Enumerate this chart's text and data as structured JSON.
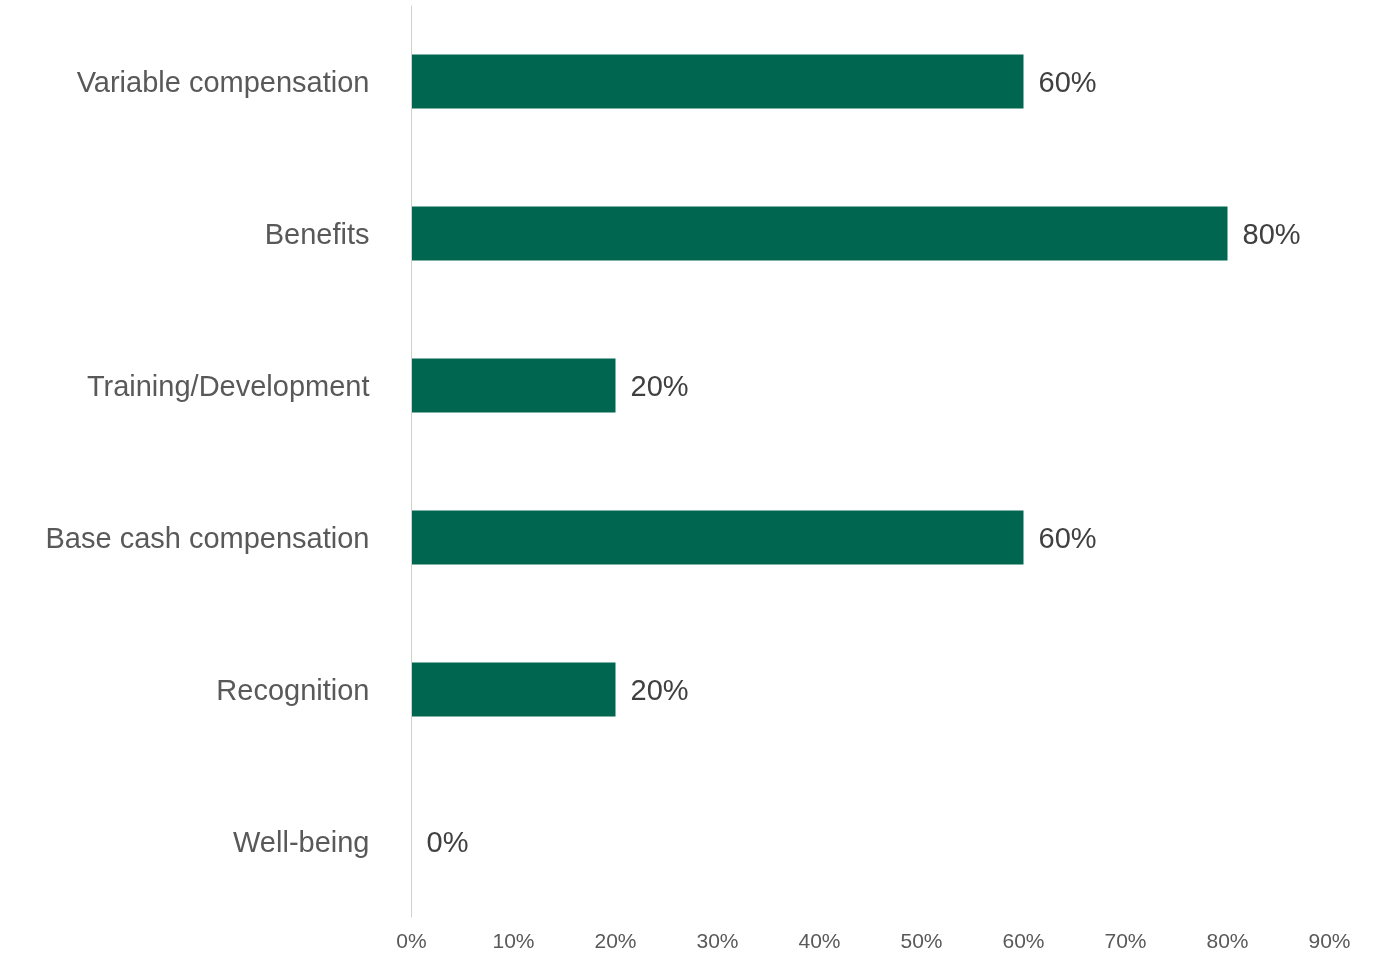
{
  "chart_data": {
    "type": "bar",
    "orientation": "horizontal",
    "categories": [
      "Variable compensation",
      "Benefits",
      "Training/Development",
      "Base cash compensation",
      "Recognition",
      "Well-being"
    ],
    "values": [
      60,
      80,
      20,
      60,
      20,
      0
    ],
    "value_labels": [
      "60%",
      "80%",
      "20%",
      "60%",
      "20%",
      "0%"
    ],
    "color": "#006650",
    "xlim": [
      0,
      90
    ],
    "xticks": [
      {
        "value": 0,
        "label": "0%"
      },
      {
        "value": 10,
        "label": "10%"
      },
      {
        "value": 20,
        "label": "20%"
      },
      {
        "value": 30,
        "label": "30%"
      },
      {
        "value": 40,
        "label": "40%"
      },
      {
        "value": 50,
        "label": "50%"
      },
      {
        "value": 60,
        "label": "60%"
      },
      {
        "value": 70,
        "label": "70%"
      },
      {
        "value": 80,
        "label": "80%"
      },
      {
        "value": 90,
        "label": "90%"
      }
    ]
  }
}
